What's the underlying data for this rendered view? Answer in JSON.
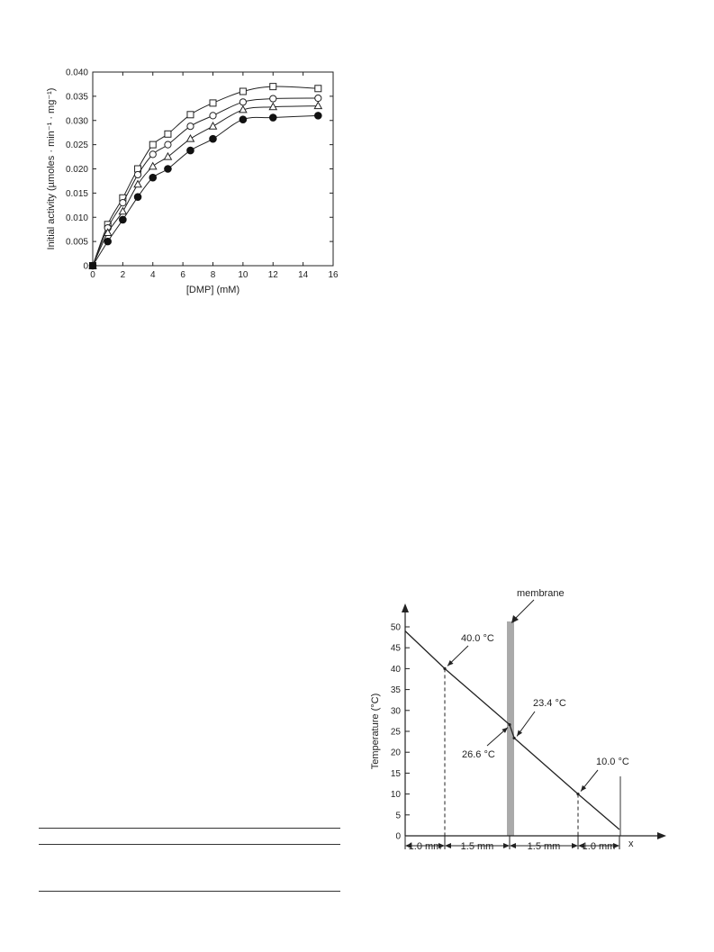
{
  "chart_data": [
    {
      "type": "scatter",
      "xlabel": "[DMP] (mM)",
      "ylabel": "Initial activity (µmoles · min⁻¹ · mg⁻¹)",
      "xlim": [
        0,
        16
      ],
      "ylim": [
        0,
        0.04
      ],
      "x_ticks": [
        "0",
        "2",
        "4",
        "6",
        "8",
        "10",
        "12",
        "14",
        "16"
      ],
      "y_ticks": [
        "0",
        "0.005",
        "0.010",
        "0.015",
        "0.020",
        "0.025",
        "0.030",
        "0.035",
        "0.040"
      ],
      "grid": false,
      "series": [
        {
          "marker": "open-square",
          "x": [
            0,
            1,
            2,
            3,
            4,
            5,
            6.5,
            8,
            10,
            12,
            15
          ],
          "y": [
            0,
            0.0085,
            0.014,
            0.02,
            0.025,
            0.0272,
            0.0312,
            0.0336,
            0.036,
            0.037,
            0.0366
          ]
        },
        {
          "marker": "open-circle",
          "x": [
            0,
            1,
            2,
            3,
            4,
            5,
            6.5,
            8,
            10,
            12,
            15
          ],
          "y": [
            0,
            0.0078,
            0.013,
            0.0188,
            0.023,
            0.025,
            0.0288,
            0.031,
            0.0338,
            0.0345,
            0.0346
          ]
        },
        {
          "marker": "open-triangle",
          "x": [
            0,
            1,
            2,
            3,
            4,
            5,
            6.5,
            8,
            10,
            12,
            15
          ],
          "y": [
            0,
            0.0068,
            0.0112,
            0.0168,
            0.0205,
            0.0225,
            0.0262,
            0.0288,
            0.0322,
            0.0328,
            0.033
          ]
        },
        {
          "marker": "filled-circle",
          "x": [
            0,
            1,
            2,
            3,
            4,
            5,
            6.5,
            8,
            10,
            12,
            15
          ],
          "y": [
            0,
            0.005,
            0.0095,
            0.0142,
            0.0182,
            0.02,
            0.0238,
            0.0262,
            0.0302,
            0.0306,
            0.031
          ]
        }
      ]
    },
    {
      "type": "line",
      "ylabel": "Temperature (°C)",
      "xlabel": "x",
      "ylim": [
        0,
        50
      ],
      "y_ticks": [
        "0",
        "5",
        "10",
        "15",
        "20",
        "25",
        "30",
        "35",
        "40",
        "45",
        "50"
      ],
      "segments": [
        "1.0 mm",
        "1.5 mm",
        "1.5 mm",
        "1.0 mm"
      ],
      "x_mm": [
        0,
        1.0,
        2.5,
        4.0,
        5.0
      ],
      "membrane_label": "membrane",
      "annotations": [
        "40.0 °C",
        "26.6 °C",
        "23.4 °C",
        "10.0 °C"
      ],
      "temperature_points": [
        {
          "x_mm": 0,
          "y": 49
        },
        {
          "x_mm": 1.0,
          "y": 40.0
        },
        {
          "x_mm": 2.5,
          "y": 26.6
        },
        {
          "x_mm": 2.6,
          "y": 23.4
        },
        {
          "x_mm": 4.0,
          "y": 10.0
        },
        {
          "x_mm": 5.0,
          "y": 1.5
        }
      ]
    }
  ]
}
